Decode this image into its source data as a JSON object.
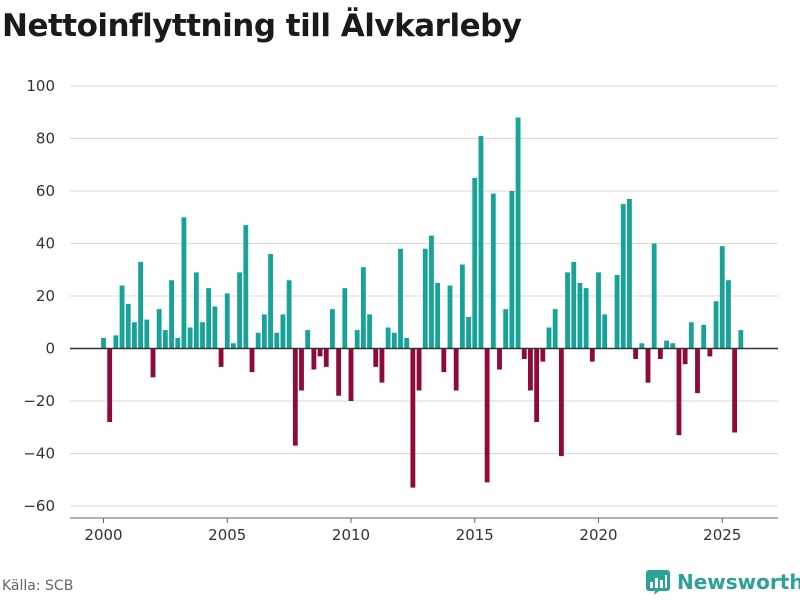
{
  "header": {
    "title": "Nettoinflyttning till Älvkarleby"
  },
  "footer": {
    "source": "Källa: SCB",
    "brand": "Newsworthy"
  },
  "colors": {
    "positive": "#17a398",
    "negative": "#8e0a3c",
    "grid": "#d9d9d9",
    "zero": "#333333"
  },
  "chart_data": {
    "type": "bar",
    "title": "Nettoinflyttning till Älvkarleby",
    "xlabel": "",
    "ylabel": "",
    "ylim": [
      -60,
      100
    ],
    "yticks": [
      100,
      80,
      60,
      40,
      20,
      0,
      -20,
      -40,
      -60
    ],
    "ytick_labels": [
      "100",
      "80",
      "60",
      "40",
      "20",
      "0",
      "−20",
      "−40",
      "−60"
    ],
    "xticks": [
      2000,
      2005,
      2010,
      2015,
      2020,
      2025
    ],
    "xtick_labels": [
      "2000",
      "2005",
      "2010",
      "2015",
      "2020",
      "2025"
    ],
    "grid": true,
    "granularity": "quarterly",
    "start": 2000.0,
    "values": [
      4,
      -28,
      5,
      24,
      17,
      10,
      33,
      11,
      -11,
      15,
      7,
      26,
      4,
      50,
      8,
      29,
      10,
      23,
      16,
      -7,
      21,
      2,
      29,
      47,
      -9,
      6,
      13,
      36,
      6,
      13,
      26,
      -37,
      -16,
      7,
      -8,
      -3,
      -7,
      15,
      -18,
      23,
      -20,
      7,
      31,
      13,
      -7,
      -13,
      8,
      6,
      38,
      4,
      -53,
      -16,
      38,
      43,
      25,
      -9,
      24,
      -16,
      32,
      12,
      65,
      81,
      -51,
      59,
      -8,
      15,
      60,
      88,
      -4,
      -16,
      -28,
      -5,
      8,
      15,
      -41,
      29,
      33,
      25,
      23,
      -5,
      29,
      13,
      0,
      28,
      55,
      57,
      -4,
      2,
      -13,
      40,
      -4,
      3,
      2,
      -33,
      -6,
      10,
      -17,
      9,
      -3,
      18,
      39,
      26,
      -32,
      7
    ]
  }
}
